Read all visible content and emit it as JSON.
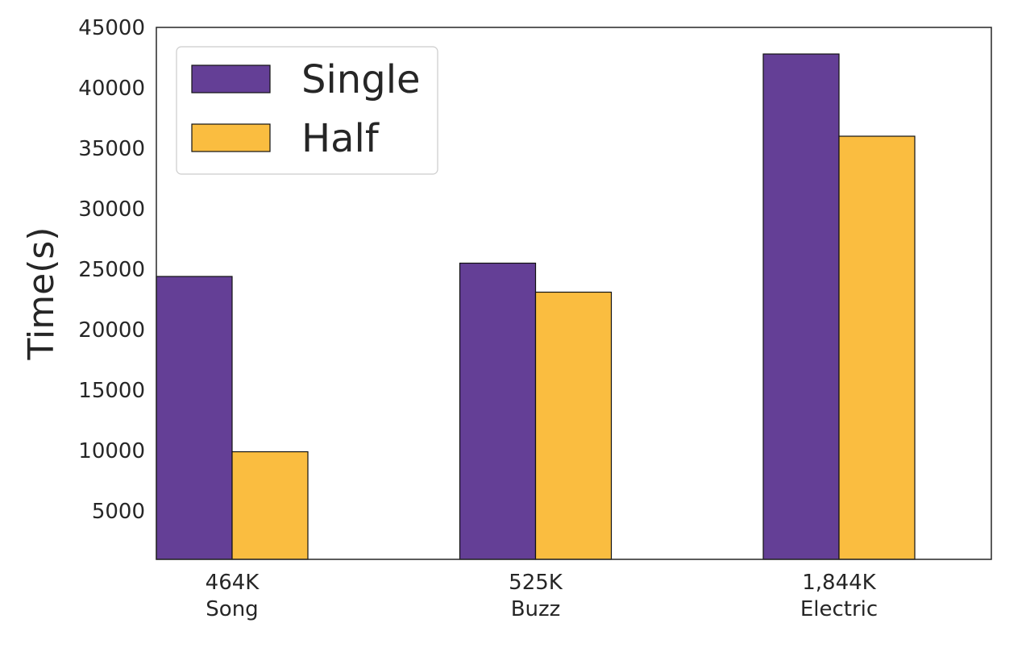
{
  "chart_data": {
    "type": "bar",
    "categories": [
      {
        "line1": "464K",
        "line2": "Song"
      },
      {
        "line1": "525K",
        "line2": "Buzz"
      },
      {
        "line1": "1,844K",
        "line2": "Electric"
      }
    ],
    "series": [
      {
        "name": "Single",
        "color": "#643f96",
        "values": [
          24400,
          25500,
          42800
        ]
      },
      {
        "name": "Half",
        "color": "#fabd40",
        "values": [
          9900,
          23100,
          36000
        ]
      }
    ],
    "ylabel": "Time(s)",
    "ylim": [
      1000,
      45000
    ],
    "yticks": [
      5000,
      10000,
      15000,
      20000,
      25000,
      30000,
      35000,
      40000,
      45000
    ],
    "grid": false,
    "legend_position": "top-left"
  }
}
